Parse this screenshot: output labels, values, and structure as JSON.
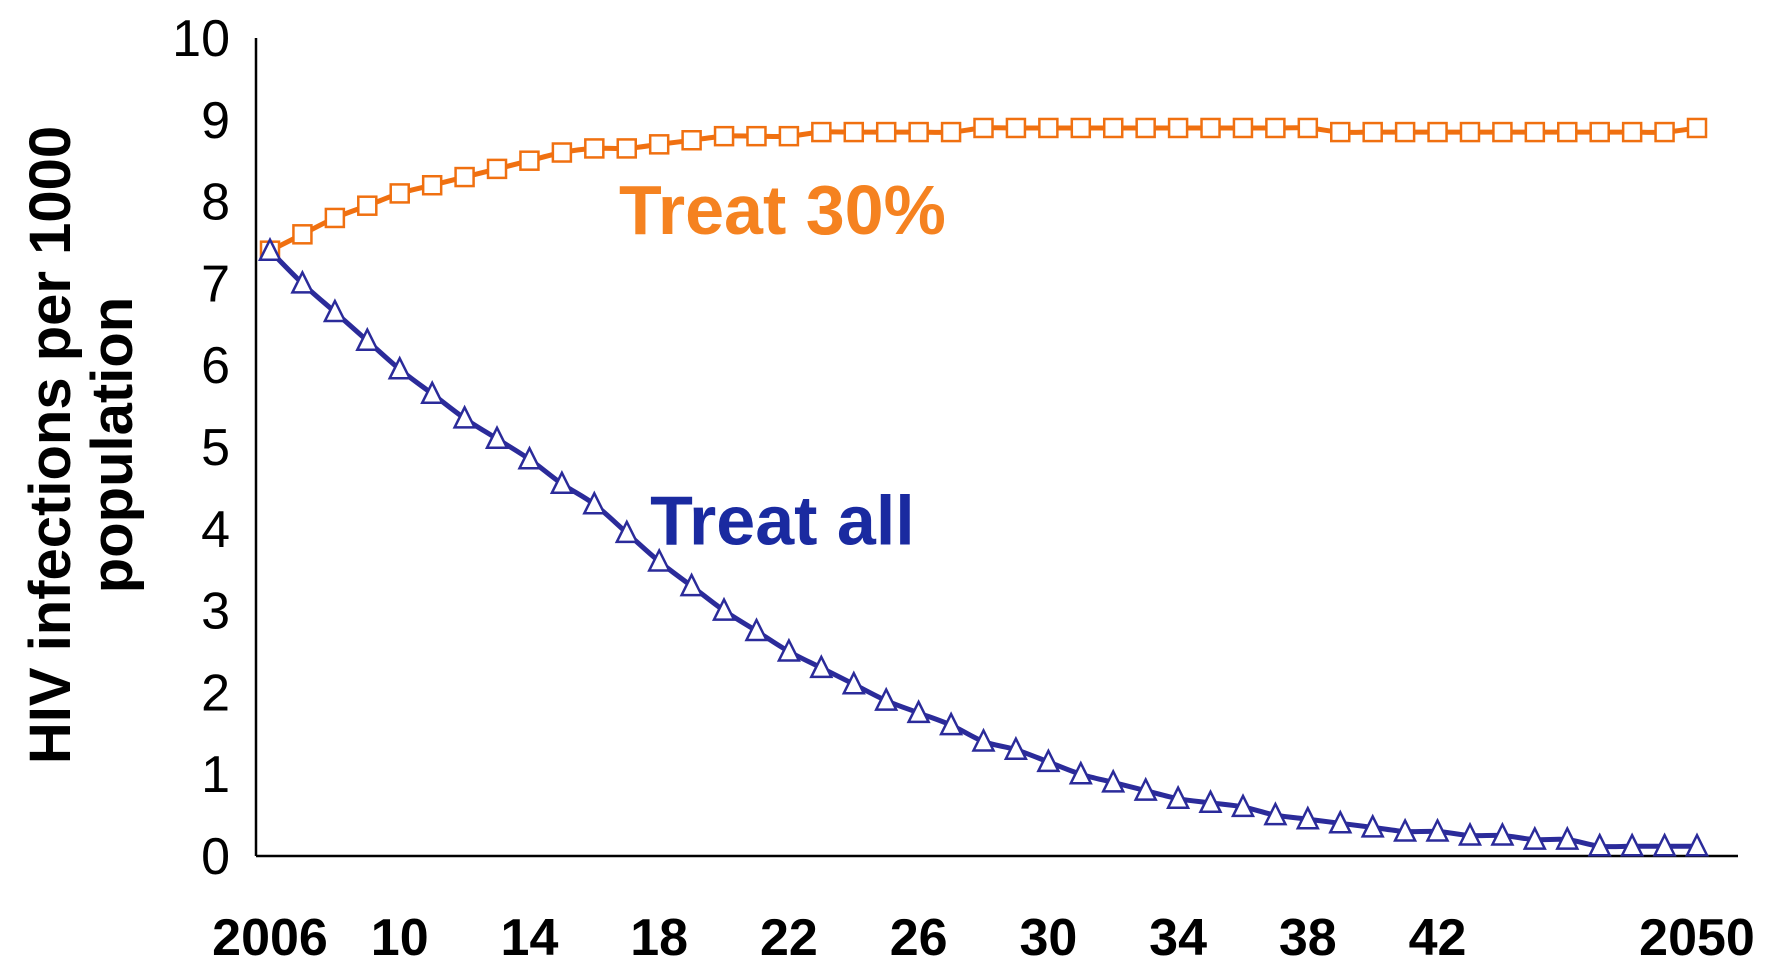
{
  "chart_data": {
    "type": "line",
    "title": "",
    "xlabel": "",
    "ylabel_lines": [
      "HIV infections per 1000",
      "population"
    ],
    "ylim": [
      0,
      10
    ],
    "y_ticks": [
      "0",
      "1",
      "2",
      "3",
      "4",
      "5",
      "6",
      "7",
      "8",
      "9",
      "10"
    ],
    "x_ticks": [
      {
        "x": 2006,
        "label": "2006"
      },
      {
        "x": 2010,
        "label": "10"
      },
      {
        "x": 2014,
        "label": "14"
      },
      {
        "x": 2018,
        "label": "18"
      },
      {
        "x": 2022,
        "label": "22"
      },
      {
        "x": 2026,
        "label": "26"
      },
      {
        "x": 2030,
        "label": "30"
      },
      {
        "x": 2034,
        "label": "34"
      },
      {
        "x": 2038,
        "label": "38"
      },
      {
        "x": 2042,
        "label": "42"
      },
      {
        "x": 2050,
        "label": "2050"
      }
    ],
    "xlim": [
      2006,
      2050
    ],
    "grid": false,
    "x": [
      2006,
      2007,
      2008,
      2009,
      2010,
      2011,
      2012,
      2013,
      2014,
      2015,
      2016,
      2017,
      2018,
      2019,
      2020,
      2021,
      2022,
      2023,
      2024,
      2025,
      2026,
      2027,
      2028,
      2029,
      2030,
      2031,
      2032,
      2033,
      2034,
      2035,
      2036,
      2037,
      2038,
      2039,
      2040,
      2041,
      2042,
      2043,
      2044,
      2045,
      2046,
      2047,
      2048,
      2049,
      2050
    ],
    "series": [
      {
        "name": "Treat 30%",
        "color": "#f07010",
        "marker": "square",
        "values": [
          7.4,
          7.6,
          7.8,
          7.95,
          8.1,
          8.2,
          8.3,
          8.4,
          8.5,
          8.6,
          8.65,
          8.65,
          8.7,
          8.75,
          8.8,
          8.8,
          8.8,
          8.85,
          8.85,
          8.85,
          8.85,
          8.85,
          8.9,
          8.9,
          8.9,
          8.9,
          8.9,
          8.9,
          8.9,
          8.9,
          8.9,
          8.9,
          8.9,
          8.85,
          8.85,
          8.85,
          8.85,
          8.85,
          8.85,
          8.85,
          8.85,
          8.85,
          8.85,
          8.85,
          8.9
        ]
      },
      {
        "name": "Treat all",
        "color": "#2b2b9a",
        "marker": "triangle",
        "values": [
          7.4,
          7.0,
          6.65,
          6.3,
          5.95,
          5.65,
          5.35,
          5.1,
          4.85,
          4.55,
          4.3,
          3.95,
          3.6,
          3.3,
          3.0,
          2.75,
          2.5,
          2.3,
          2.1,
          1.9,
          1.75,
          1.6,
          1.4,
          1.3,
          1.15,
          1.0,
          0.9,
          0.8,
          0.7,
          0.65,
          0.6,
          0.5,
          0.45,
          0.4,
          0.35,
          0.3,
          0.3,
          0.25,
          0.25,
          0.2,
          0.2,
          0.12,
          0.12,
          0.12,
          0.12
        ]
      }
    ],
    "annotations": [
      {
        "text": "Treat 30%",
        "color": "#f58220",
        "x": 2021.8,
        "y": 7.9
      },
      {
        "text": "Treat all",
        "color": "#1a2aa0",
        "x": 2021.8,
        "y": 4.1
      }
    ]
  }
}
